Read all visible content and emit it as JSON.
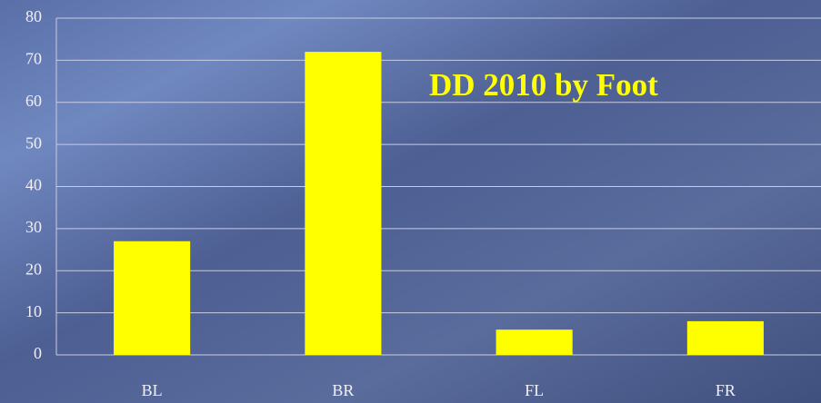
{
  "chart_data": {
    "type": "bar",
    "title": "DD 2010 by Foot",
    "categories": [
      "BL",
      "BR",
      "FL",
      "FR"
    ],
    "values": [
      27,
      72,
      6,
      8
    ],
    "color": "#ffff00",
    "ylim": [
      0,
      80
    ],
    "yticks": [
      0,
      10,
      20,
      30,
      40,
      50,
      60,
      70,
      80
    ],
    "grid": true
  }
}
